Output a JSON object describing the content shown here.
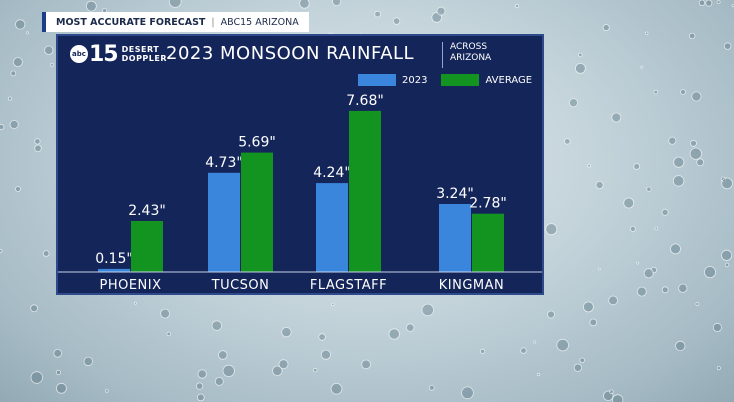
{
  "banner": {
    "left": "MOST ACCURATE FORECAST",
    "right": "ABC15 ARIZONA"
  },
  "header": {
    "logo_badge": "abc",
    "logo_number": "15",
    "logo_line1": "DESERT",
    "logo_line2": "DOPPLER",
    "title": "2023 MONSOON RAINFALL",
    "region_line1": "ACROSS",
    "region_line2": "ARIZONA"
  },
  "colors": {
    "series_2023": "#3a86dd",
    "series_average": "#13931f",
    "panel": "#14255a"
  },
  "chart_data": {
    "type": "bar",
    "title": "2023 MONSOON RAINFALL",
    "categories": [
      "PHOENIX",
      "TUCSON",
      "FLAGSTAFF",
      "KINGMAN"
    ],
    "series": [
      {
        "name": "2023",
        "values": [
          0.15,
          4.73,
          4.24,
          3.24
        ],
        "labels": [
          "0.15\"",
          "4.73\"",
          "4.24\"",
          "3.24\""
        ]
      },
      {
        "name": "AVERAGE",
        "values": [
          2.43,
          5.69,
          7.68,
          2.78
        ],
        "labels": [
          "2.43\"",
          "5.69\"",
          "7.68\"",
          "2.78\""
        ]
      }
    ],
    "ylim": [
      0,
      8.2
    ],
    "legend": "top-right",
    "grid": false
  }
}
